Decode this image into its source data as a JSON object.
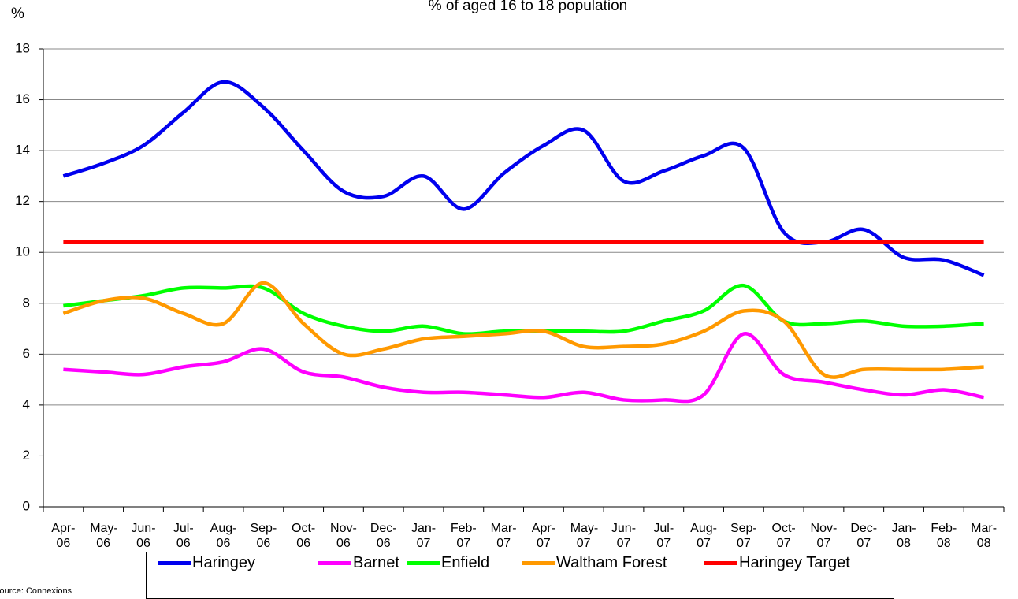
{
  "chart_data": {
    "type": "line",
    "title": "% of aged 16 to 18 population",
    "y_label": "%",
    "source": "Source: Connexions",
    "categories": [
      "Apr-06",
      "May-06",
      "Jun-06",
      "Jul-06",
      "Aug-06",
      "Sep-06",
      "Oct-06",
      "Nov-06",
      "Dec-06",
      "Jan-07",
      "Feb-07",
      "Mar-07",
      "Apr-07",
      "May-07",
      "Jun-07",
      "Jul-07",
      "Aug-07",
      "Sep-07",
      "Oct-07",
      "Nov-07",
      "Dec-07",
      "Jan-08",
      "Feb-08",
      "Mar-08"
    ],
    "ylim": [
      0,
      18
    ],
    "yticks": [
      0,
      2,
      4,
      6,
      8,
      10,
      12,
      14,
      16,
      18
    ],
    "grid": true,
    "legend": "bottom",
    "series": [
      {
        "name": "Haringey",
        "color": "#0000ee",
        "values": [
          13.0,
          13.5,
          14.2,
          15.5,
          16.7,
          15.7,
          14.0,
          12.4,
          12.2,
          13.0,
          11.7,
          13.1,
          14.2,
          14.8,
          12.8,
          13.2,
          13.8,
          14.1,
          10.8,
          10.4,
          10.9,
          9.8,
          9.7,
          9.1
        ]
      },
      {
        "name": "Barnet",
        "color": "#ff00ff",
        "values": [
          5.4,
          5.3,
          5.2,
          5.5,
          5.7,
          6.2,
          5.3,
          5.1,
          4.7,
          4.5,
          4.5,
          4.4,
          4.3,
          4.5,
          4.2,
          4.2,
          4.4,
          6.8,
          5.2,
          4.9,
          4.6,
          4.4,
          4.6,
          4.3
        ]
      },
      {
        "name": "Enfield",
        "color": "#00ff00",
        "values": [
          7.9,
          8.1,
          8.3,
          8.6,
          8.6,
          8.6,
          7.6,
          7.1,
          6.9,
          7.1,
          6.8,
          6.9,
          6.9,
          6.9,
          6.9,
          7.3,
          7.7,
          8.7,
          7.3,
          7.2,
          7.3,
          7.1,
          7.1,
          7.2
        ]
      },
      {
        "name": "Waltham Forest",
        "color": "#ff9900",
        "values": [
          7.6,
          8.1,
          8.2,
          7.6,
          7.2,
          8.8,
          7.2,
          6.0,
          6.2,
          6.6,
          6.7,
          6.8,
          6.9,
          6.3,
          6.3,
          6.4,
          6.9,
          7.7,
          7.3,
          5.2,
          5.4,
          5.4,
          5.4,
          5.5
        ]
      },
      {
        "name": "Haringey Target",
        "color": "#ff0000",
        "values": [
          10.4,
          10.4,
          10.4,
          10.4,
          10.4,
          10.4,
          10.4,
          10.4,
          10.4,
          10.4,
          10.4,
          10.4,
          10.4,
          10.4,
          10.4,
          10.4,
          10.4,
          10.4,
          10.4,
          10.4,
          10.4,
          10.4,
          10.4,
          10.4
        ]
      }
    ]
  }
}
